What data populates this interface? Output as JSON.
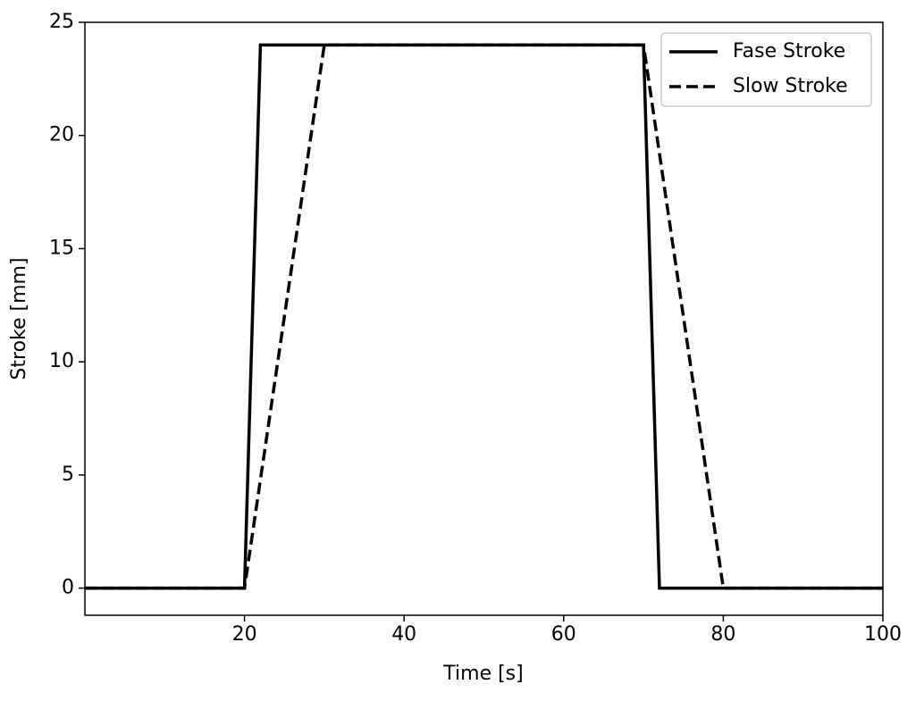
{
  "chart_data": {
    "type": "line",
    "xlabel": "Time [s]",
    "ylabel": "Stroke [mm]",
    "series": [
      {
        "name": "Fase Stroke",
        "color": "#000000",
        "dash": "solid",
        "x": [
          0,
          20,
          22,
          70,
          72,
          100
        ],
        "values": [
          0,
          0,
          24,
          24,
          0,
          0
        ]
      },
      {
        "name": "Slow Stroke",
        "color": "#000000",
        "dash": "dashed",
        "x": [
          0,
          20,
          30,
          70,
          80,
          100
        ],
        "values": [
          0,
          0,
          24,
          24,
          0,
          0
        ]
      }
    ],
    "xlim": [
      0,
      100
    ],
    "ylim": [
      -1.2,
      25
    ],
    "xticks": [
      20,
      40,
      60,
      80,
      100
    ],
    "yticks": [
      0,
      5,
      10,
      15,
      20,
      25
    ],
    "grid": false,
    "legend": "upper right"
  }
}
